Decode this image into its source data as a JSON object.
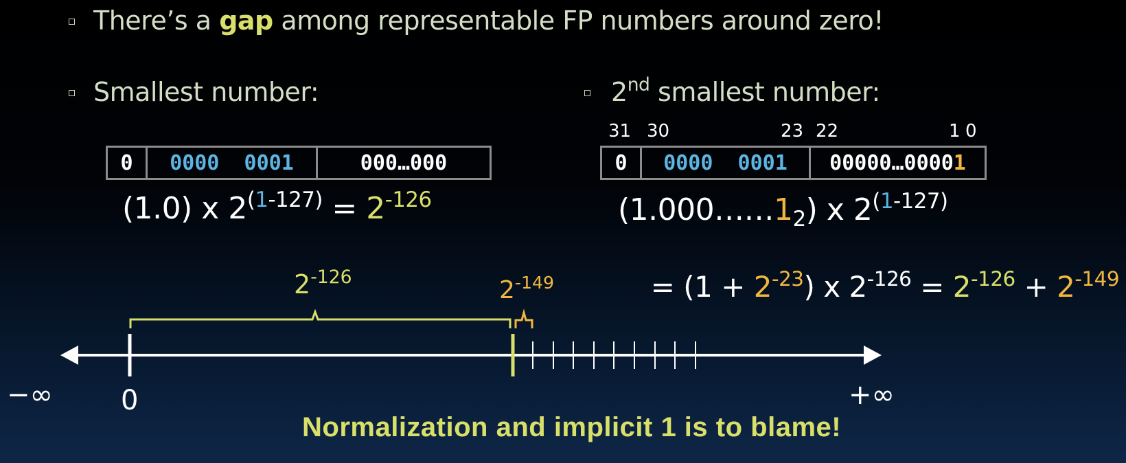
{
  "bullets": {
    "gap": {
      "before": "There’s a",
      "word": "gap",
      "after": "among representable FP numbers around zero!"
    },
    "smallest": {
      "label": "Smallest number:"
    },
    "second": {
      "prefix": "2",
      "sup": "nd",
      "label": "smallest number:"
    }
  },
  "smallest_box": {
    "sign": "0",
    "exponent": "0000  0001",
    "fraction": "000…000"
  },
  "second_box": {
    "bit_labels": {
      "b31": "31",
      "b30": "30",
      "b23": "23",
      "b22": "22",
      "b1": "1",
      "b0": "0"
    },
    "sign": "0",
    "exponent": "0000  0001",
    "fraction_main": "00000…0000",
    "fraction_last": "1"
  },
  "formula_smallest": {
    "lead": "(1.0) x 2",
    "exp_open": "(",
    "exp_one": "1",
    "exp_rest": "-127)",
    "eq": " = ",
    "res_base": "2",
    "res_exp": "-126"
  },
  "formula_second_line1": {
    "lead": "(1.000……",
    "one": "1",
    "sub": "2",
    "mid": ") x 2",
    "exp_open": "(",
    "exp_one": "1",
    "exp_rest": "-127)"
  },
  "formula_second_line2": {
    "a": "= (1 + ",
    "b_base": "2",
    "b_exp": "-23",
    "c": ") x 2",
    "c_exp": "-126",
    "d": " = ",
    "e_base": "2",
    "e_exp": "-126",
    "f": " + ",
    "g_base": "2",
    "g_exp": "-149"
  },
  "numberline": {
    "neg_inf": "−∞",
    "zero": "0",
    "pos_inf": "+∞",
    "gap_base": "2",
    "gap_exp": "-126",
    "small_base": "2",
    "small_exp": "-149"
  },
  "footer": "Normalization and implicit 1 is to blame!",
  "colors": {
    "yellow": "#d9e06a",
    "orange": "#f2b640",
    "blue": "#5cb5e2"
  }
}
